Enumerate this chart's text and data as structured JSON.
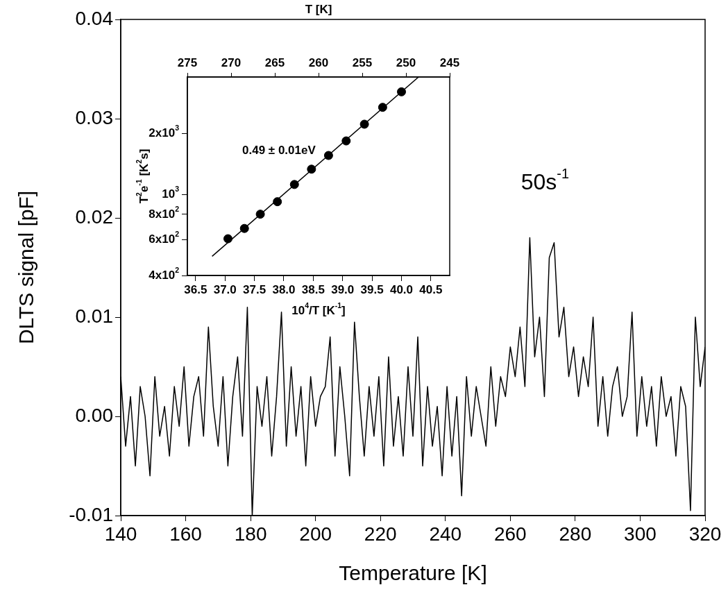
{
  "chart_data": [
    {
      "type": "line",
      "xlabel": "Temperature [K]",
      "ylabel": "DLTS signal [pF]",
      "color": "#000000",
      "x": [
        140,
        141.5,
        143,
        144.5,
        146,
        147.5,
        149,
        150.5,
        152,
        153.5,
        155,
        156.5,
        158,
        159.5,
        161,
        162.5,
        164,
        165.5,
        167,
        168.5,
        170,
        171.5,
        173,
        174.5,
        176,
        177.5,
        179,
        180.5,
        182,
        183.5,
        185,
        186.5,
        188,
        189.5,
        191,
        192.5,
        194,
        195.5,
        197,
        198.5,
        200,
        201.5,
        203,
        204.5,
        206,
        207.5,
        209,
        210.5,
        212,
        213.5,
        215,
        216.5,
        218,
        219.5,
        221,
        222.5,
        224,
        225.5,
        227,
        228.5,
        230,
        231.5,
        233,
        234.5,
        236,
        237.5,
        239,
        240.5,
        242,
        243.5,
        245,
        246.5,
        248,
        249.5,
        251,
        252.5,
        254,
        255.5,
        257,
        258.5,
        260,
        261.5,
        263,
        264.5,
        266,
        267.5,
        269,
        270.5,
        272,
        273.5,
        275,
        276.5,
        278,
        279.5,
        281,
        282.5,
        284,
        285.5,
        287,
        288.5,
        290,
        291.5,
        293,
        294.5,
        296,
        297.5,
        299,
        300.5,
        302,
        303.5,
        305,
        306.5,
        308,
        309.5,
        311,
        312.5,
        314,
        315.5,
        317,
        318.5,
        320
      ],
      "values": [
        0.004,
        -0.003,
        0.002,
        -0.005,
        0.003,
        0.0,
        -0.006,
        0.004,
        -0.002,
        0.001,
        -0.004,
        0.003,
        -0.001,
        0.005,
        -0.003,
        0.002,
        0.004,
        -0.002,
        0.009,
        0.001,
        -0.003,
        0.004,
        -0.005,
        0.002,
        0.006,
        -0.002,
        0.011,
        -0.01,
        0.003,
        -0.001,
        0.004,
        -0.004,
        0.002,
        0.0105,
        -0.003,
        0.005,
        -0.002,
        0.003,
        -0.005,
        0.004,
        -0.001,
        0.002,
        0.003,
        0.008,
        -0.004,
        0.005,
        0.0,
        -0.006,
        0.0095,
        0.002,
        -0.004,
        0.003,
        -0.002,
        0.004,
        -0.005,
        0.006,
        -0.003,
        0.002,
        -0.004,
        0.005,
        -0.002,
        0.008,
        -0.005,
        0.003,
        -0.003,
        0.001,
        -0.006,
        0.003,
        -0.004,
        0.002,
        -0.008,
        0.004,
        -0.002,
        0.003,
        0.0,
        -0.003,
        0.005,
        -0.001,
        0.004,
        0.002,
        0.007,
        0.004,
        0.009,
        0.003,
        0.018,
        0.006,
        0.01,
        0.002,
        0.016,
        0.0175,
        0.008,
        0.011,
        0.004,
        0.007,
        0.002,
        0.006,
        0.003,
        0.01,
        -0.001,
        0.004,
        -0.002,
        0.003,
        0.005,
        0.0,
        0.002,
        0.0105,
        -0.002,
        0.004,
        -0.001,
        0.003,
        -0.003,
        0.004,
        0.0,
        0.002,
        -0.004,
        0.003,
        0.001,
        -0.0095,
        0.01,
        0.003,
        0.007
      ],
      "xlim": [
        140,
        320
      ],
      "xticks": [
        140,
        160,
        180,
        200,
        220,
        240,
        260,
        280,
        300,
        320
      ],
      "ylim": [
        -0.01,
        0.04
      ],
      "yticks": [
        -0.01,
        {
          "value": 0,
          "label": "0.00"
        },
        0.01,
        0.02,
        0.03,
        0.04
      ],
      "annotations": [
        "50s$^{-1}$"
      ]
    },
    {
      "type": "scatter",
      "xlabel": "10$^{4}$/T [K$^{-1}$]",
      "ylabel": "T$^{2}$e$^{-1}$ [K$^{2}$s]",
      "x2label": "T [K]",
      "log": "y",
      "series": [
        {
          "color": "#000000",
          "marker": "circle",
          "x": [
            37.05,
            37.33,
            37.6,
            37.89,
            38.18,
            38.47,
            38.76,
            39.06,
            39.37,
            39.68,
            40.0
          ],
          "values": [
            607,
            682,
            802,
            924,
            1123,
            1336,
            1561,
            1841,
            2225,
            2695,
            3213
          ]
        },
        {
          "type": "line",
          "color": "#000000",
          "marker": "none",
          "x": [
            36.78,
            40.29
          ],
          "values": [
            497,
            3800
          ]
        }
      ],
      "xlim": [
        36.36,
        40.82
      ],
      "xticks": [
        36.5,
        {
          "value": 37,
          "label": "37.0"
        },
        37.5,
        {
          "value": 38,
          "label": "38.0"
        },
        38.5,
        {
          "value": 39,
          "label": "39.0"
        },
        39.5,
        {
          "value": 40,
          "label": "40.0"
        },
        40.5
      ],
      "x2lim": [
        275,
        245
      ],
      "x2ticks": [
        275,
        270,
        265,
        260,
        255,
        250,
        245
      ],
      "ylim": [
        400,
        3800
      ],
      "yticks": [
        {
          "value": 400,
          "label": "4x10$^{2}$"
        },
        {
          "value": 600,
          "label": "6x10$^{2}$"
        },
        {
          "value": 800,
          "label": "8x10$^{2}$"
        },
        {
          "value": 1000,
          "label": "10$^{3}$"
        },
        {
          "value": 2000,
          "label": "2x10$^{3}$"
        }
      ],
      "annotations": [
        "0.49 ± 0.01eV"
      ]
    }
  ]
}
